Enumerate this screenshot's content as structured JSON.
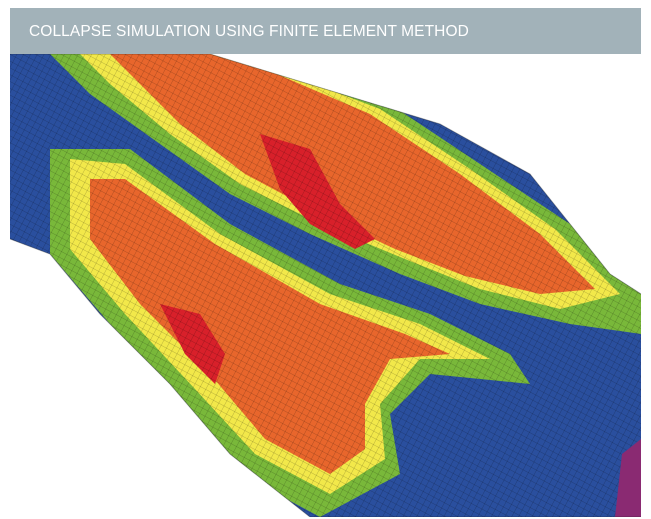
{
  "caption": {
    "title": "COLLAPSE SIMULATION USING FINITE ELEMENT METHOD"
  },
  "figure": {
    "subject": "finite-element-collapse-mesh",
    "colors": {
      "blue": "#2a4f9e",
      "green": "#79b83a",
      "yellow": "#f2e84a",
      "orange": "#e8662c",
      "red": "#d8202a",
      "magenta": "#8a2a72",
      "background": "#ffffff",
      "caption_bar": "#a2b2b9"
    }
  }
}
